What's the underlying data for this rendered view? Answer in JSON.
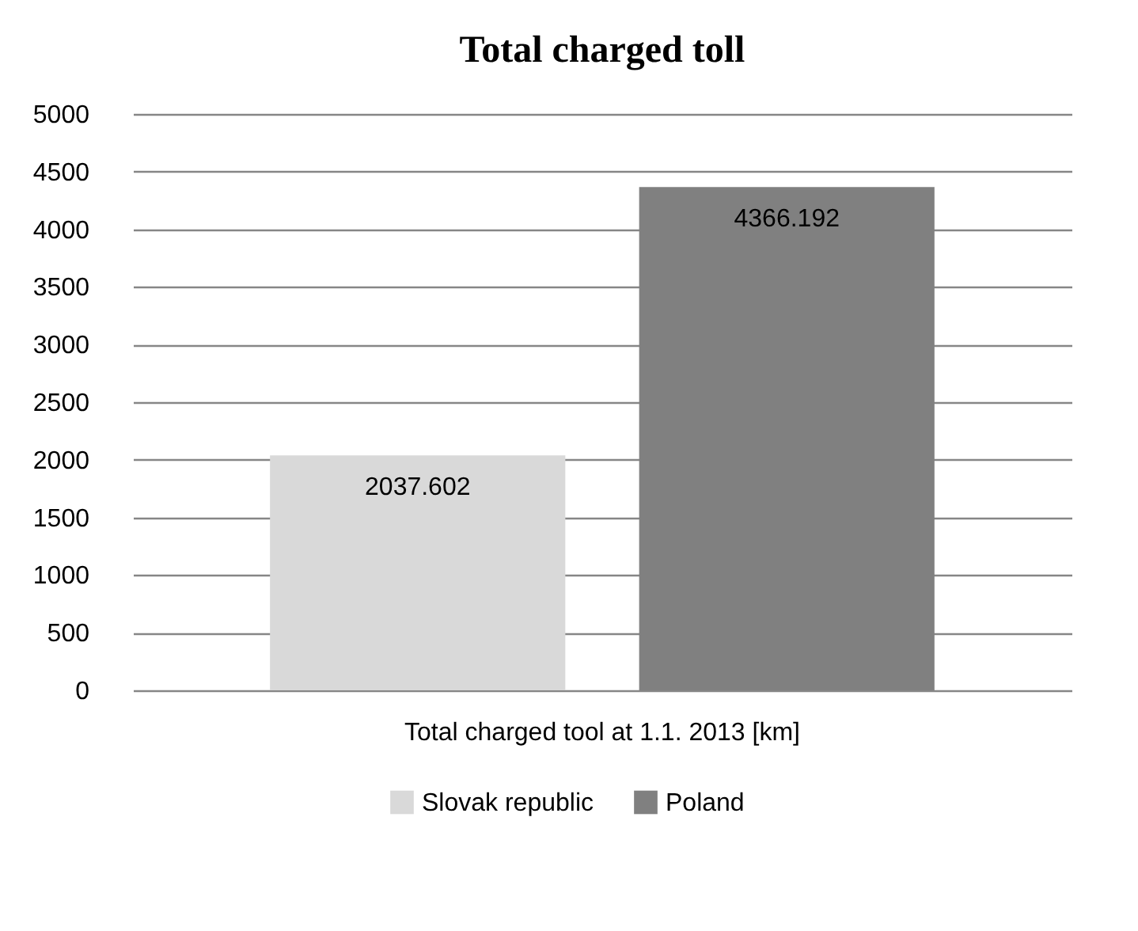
{
  "chart_data": {
    "type": "bar",
    "title": "Total charged toll",
    "categories": [
      "Total charged tool at 1.1. 2013 [km]"
    ],
    "series": [
      {
        "name": "Slovak republic",
        "color": "#d9d9d9",
        "values": [
          2037.602
        ]
      },
      {
        "name": "Poland",
        "color": "#808080",
        "values": [
          4366.192
        ]
      }
    ],
    "ylim": [
      0,
      5000
    ],
    "yticks": [
      0,
      500,
      1000,
      1500,
      2000,
      2500,
      3000,
      3500,
      4000,
      4500,
      5000
    ],
    "grid": "y",
    "legend": "bottom",
    "data_labels": true
  }
}
